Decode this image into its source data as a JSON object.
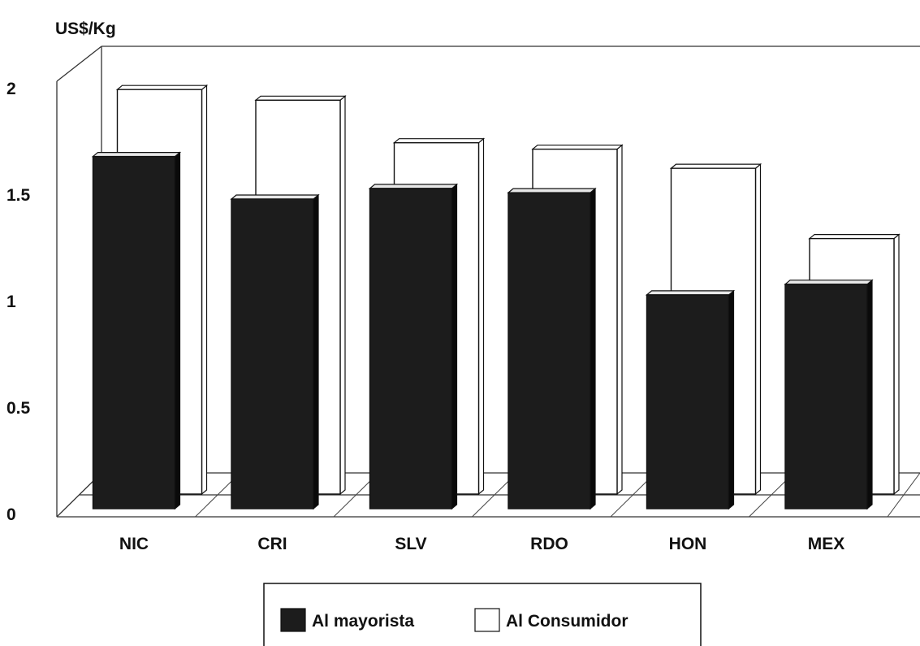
{
  "chart_data": {
    "type": "bar",
    "ylabel": "US$/Kg",
    "categories": [
      "NIC",
      "CRI",
      "SLV",
      "RDO",
      "HON",
      "MEX"
    ],
    "series": [
      {
        "name": "Al mayorista",
        "values": [
          1.7,
          1.5,
          1.55,
          1.53,
          1.05,
          1.1
        ],
        "color": "#1c1c1c"
      },
      {
        "name": "Al Consumidor",
        "values": [
          1.9,
          1.85,
          1.65,
          1.62,
          1.53,
          1.2
        ],
        "color": "#ffffff"
      }
    ],
    "ylim": [
      0,
      2
    ],
    "yticks": [
      "0",
      "0.5",
      "1",
      "1.5",
      "2"
    ],
    "grid": false,
    "legend": "bottom-center"
  }
}
